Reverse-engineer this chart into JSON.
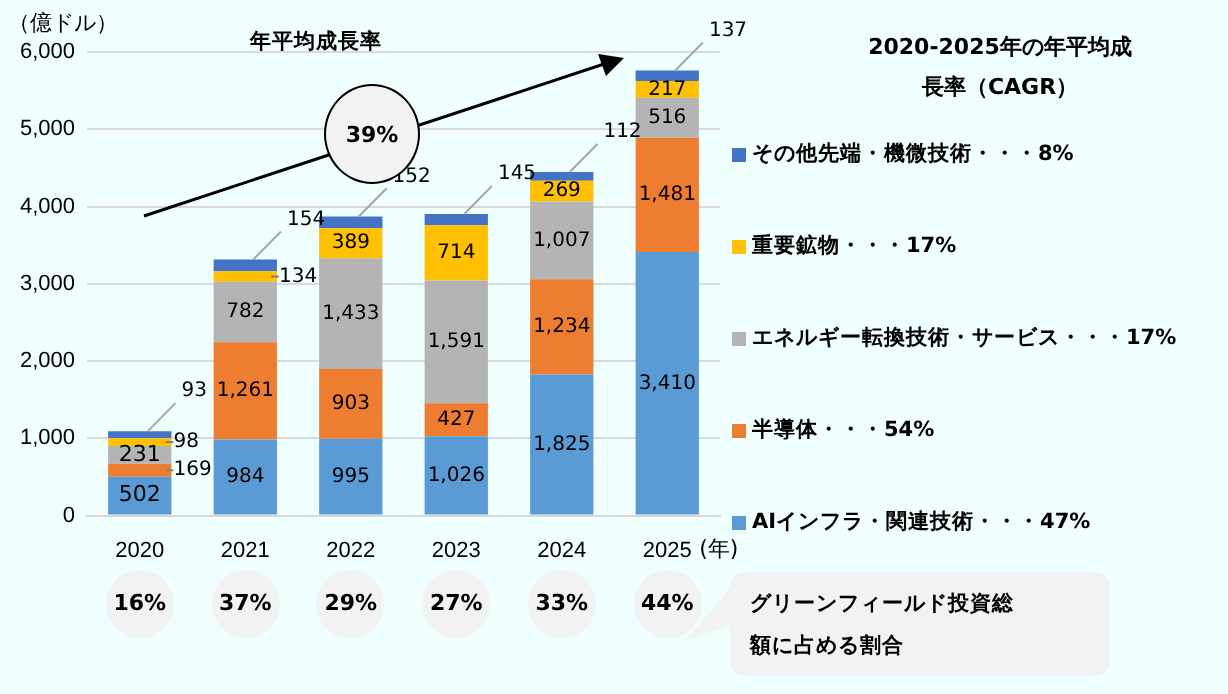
{
  "chart_data": {
    "type": "bar",
    "stacked": true,
    "categories": [
      "2020",
      "2021",
      "2022",
      "2023",
      "2024",
      "2025"
    ],
    "xlabel": "(年)",
    "ylabel": "（億ドル）",
    "series": [
      {
        "name": "AIインフラ・関連技術・・・47%",
        "color": "#5b9bd5",
        "values": [
          502,
          984,
          995,
          1026,
          1825,
          3410
        ],
        "value_labels": [
          "502",
          "984",
          "995",
          "1,026",
          "1,825",
          "3,410"
        ]
      },
      {
        "name": "半導体・・・54%",
        "color": "#ed7d31",
        "values": [
          169,
          1261,
          903,
          427,
          1234,
          1481
        ],
        "value_labels": [
          "169",
          "1,261",
          "903",
          "427",
          "1,234",
          "1,481"
        ]
      },
      {
        "name": "エネルギー転換技術・サービス・・・17%",
        "color": "#b4b4b4",
        "values": [
          231,
          782,
          1433,
          1591,
          1007,
          516
        ],
        "value_labels": [
          "231",
          "782",
          "1,433",
          "1,591",
          "1,007",
          "516"
        ]
      },
      {
        "name": "重要鉱物・・・17%",
        "color": "#ffc000",
        "values": [
          98,
          134,
          389,
          714,
          269,
          217
        ],
        "value_labels": [
          "98",
          "134",
          "389",
          "714",
          "269",
          "217"
        ]
      },
      {
        "name": "その他先端・機微技術・・・8%",
        "color": "#4472c4",
        "values": [
          93,
          154,
          152,
          145,
          112,
          137
        ],
        "value_labels": [
          "93",
          "154",
          "152",
          "145",
          "112",
          "137"
        ]
      }
    ],
    "ylim": [
      0,
      6000
    ],
    "yticks": [
      {
        "value": 0,
        "label": "0"
      },
      {
        "value": 1000,
        "label": "1,000"
      },
      {
        "value": 2000,
        "label": "2,000"
      },
      {
        "value": 3000,
        "label": "3,000"
      },
      {
        "value": 4000,
        "label": "4,000"
      },
      {
        "value": 5000,
        "label": "5,000"
      },
      {
        "value": 6000,
        "label": "6,000"
      }
    ],
    "grid": "y",
    "legend": "right",
    "legend_title": "2020-2025年の年平均成長率（CAGR）",
    "annotations": [
      "年平均成長率",
      "39%",
      "16%",
      "37%",
      "29%",
      "27%",
      "33%",
      "44%",
      "グリーンフィールド投資総額に占める割合"
    ]
  }
}
